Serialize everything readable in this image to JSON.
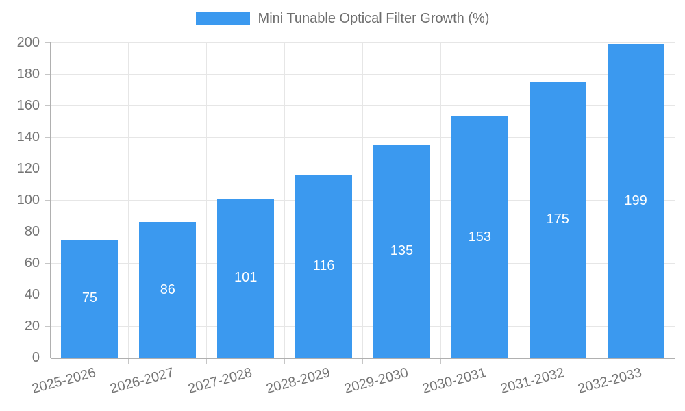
{
  "legend": {
    "label": "Mini Tunable Optical Filter Growth (%)"
  },
  "colors": {
    "bar": "#3B99EF",
    "axis": "#b0b0b0",
    "tick": "#c6c6c6",
    "grid": "#e6e6e6",
    "axis_label": "#757575",
    "value_label": "#ffffff",
    "legend_text": "#6e6e6e",
    "background": "#ffffff"
  },
  "chart_data": {
    "type": "bar",
    "title": "Mini Tunable Optical Filter Growth (%)",
    "series_name": "Mini Tunable Optical Filter Growth (%)",
    "categories": [
      "2025-2026",
      "2026-2027",
      "2027-2028",
      "2028-2029",
      "2029-2030",
      "2030-2031",
      "2031-2032",
      "2032-2033"
    ],
    "values": [
      75,
      86,
      101,
      116,
      135,
      153,
      175,
      199
    ],
    "xlabel": "",
    "ylabel": "",
    "ylim": [
      0,
      200
    ],
    "yticks": [
      0,
      20,
      40,
      60,
      80,
      100,
      120,
      140,
      160,
      180,
      200
    ],
    "grid": true,
    "legend_position": "top",
    "value_label_position": "inside-center",
    "x_label_rotation_deg": -15
  }
}
